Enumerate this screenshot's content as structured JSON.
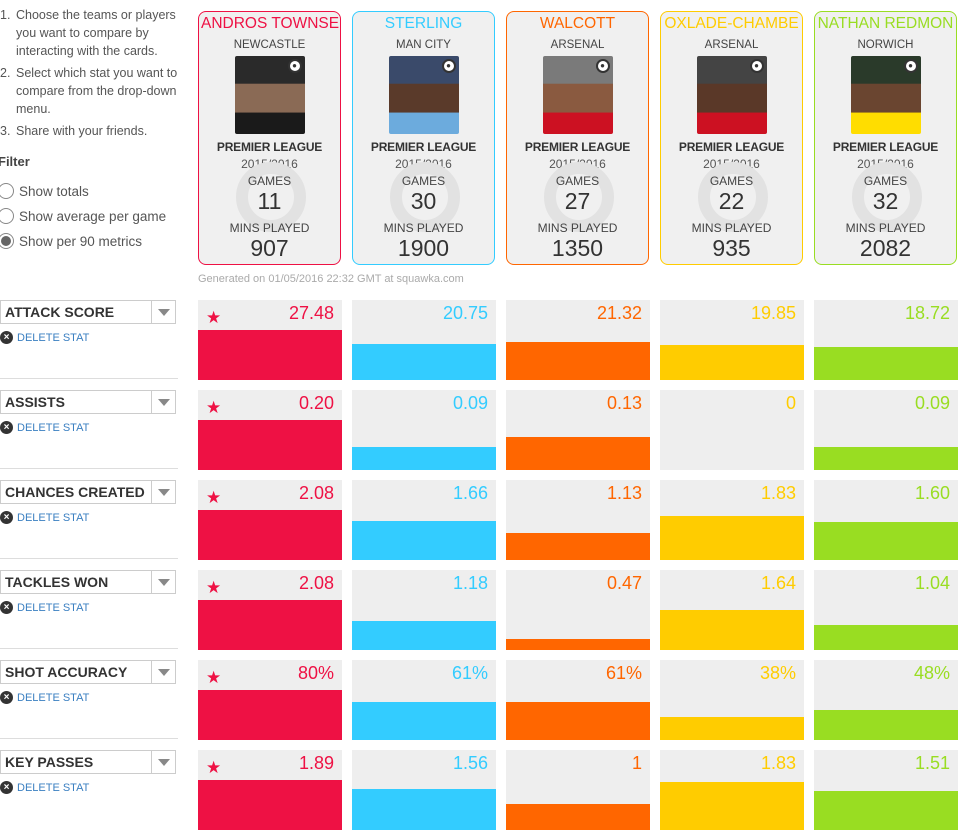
{
  "instructions": [
    {
      "num": "1.",
      "text": "Choose the teams or players you want to compare by interacting with the cards."
    },
    {
      "num": "2.",
      "text": "Select which stat you want to compare from the drop-down menu."
    },
    {
      "num": "3.",
      "text": "Share with your friends."
    }
  ],
  "filter": {
    "title": "Filter",
    "options": [
      {
        "label": "Show totals",
        "checked": false
      },
      {
        "label": "Show average per game",
        "checked": false
      },
      {
        "label": "Show per 90 metrics",
        "checked": true
      }
    ]
  },
  "players": [
    {
      "name": "ANDROS TOWNSE",
      "club": "NEWCASTLE",
      "league": "PREMIER LEAGUE",
      "season": "2015/2016",
      "games_label": "GAMES",
      "games": "11",
      "mins_label": "MINS PLAYED",
      "mins": "907",
      "color": "#ee1144"
    },
    {
      "name": "STERLING",
      "club": "MAN CITY",
      "league": "PREMIER LEAGUE",
      "season": "2015/2016",
      "games_label": "GAMES",
      "games": "30",
      "mins_label": "MINS PLAYED",
      "mins": "1900",
      "color": "#33ccff"
    },
    {
      "name": "WALCOTT",
      "club": "ARSENAL",
      "league": "PREMIER LEAGUE",
      "season": "2015/2016",
      "games_label": "GAMES",
      "games": "27",
      "mins_label": "MINS PLAYED",
      "mins": "1350",
      "color": "#ff6600"
    },
    {
      "name": "OXLADE-CHAMBE",
      "club": "ARSENAL",
      "league": "PREMIER LEAGUE",
      "season": "2015/2016",
      "games_label": "GAMES",
      "games": "22",
      "mins_label": "MINS PLAYED",
      "mins": "935",
      "color": "#ffcc00"
    },
    {
      "name": "NATHAN REDMON",
      "club": "NORWICH",
      "league": "PREMIER LEAGUE",
      "season": "2015/2016",
      "games_label": "GAMES",
      "games": "32",
      "mins_label": "MINS PLAYED",
      "mins": "2082",
      "color": "#99dd22"
    }
  ],
  "generated": "Generated on 01/05/2016 22:32 GMT at squawka.com",
  "delete_label": "DELETE STAT",
  "stats": [
    {
      "label": "ATTACK SCORE",
      "values": [
        "27.48",
        "20.75",
        "21.32",
        "19.85",
        "18.72"
      ],
      "levels": [
        0.62,
        0.45,
        0.48,
        0.44,
        0.41
      ],
      "best": 0
    },
    {
      "label": "ASSISTS",
      "values": [
        "0.20",
        "0.09",
        "0.13",
        "0",
        "0.09"
      ],
      "levels": [
        0.62,
        0.29,
        0.41,
        0,
        0.29
      ],
      "best": 0
    },
    {
      "label": "CHANCES CREATED",
      "values": [
        "2.08",
        "1.66",
        "1.13",
        "1.83",
        "1.60"
      ],
      "levels": [
        0.62,
        0.49,
        0.34,
        0.55,
        0.48
      ],
      "best": 0
    },
    {
      "label": "TACKLES WON",
      "values": [
        "2.08",
        "1.18",
        "0.47",
        "1.64",
        "1.04"
      ],
      "levels": [
        0.62,
        0.36,
        0.14,
        0.5,
        0.31
      ],
      "best": 0
    },
    {
      "label": "SHOT ACCURACY",
      "values": [
        "80%",
        "61%",
        "61%",
        "38%",
        "48%"
      ],
      "levels": [
        0.62,
        0.47,
        0.47,
        0.29,
        0.37
      ],
      "best": 0
    },
    {
      "label": "KEY PASSES",
      "values": [
        "1.89",
        "1.56",
        "1",
        "1.83",
        "1.51"
      ],
      "levels": [
        0.62,
        0.51,
        0.33,
        0.6,
        0.49
      ],
      "best": 0
    }
  ]
}
